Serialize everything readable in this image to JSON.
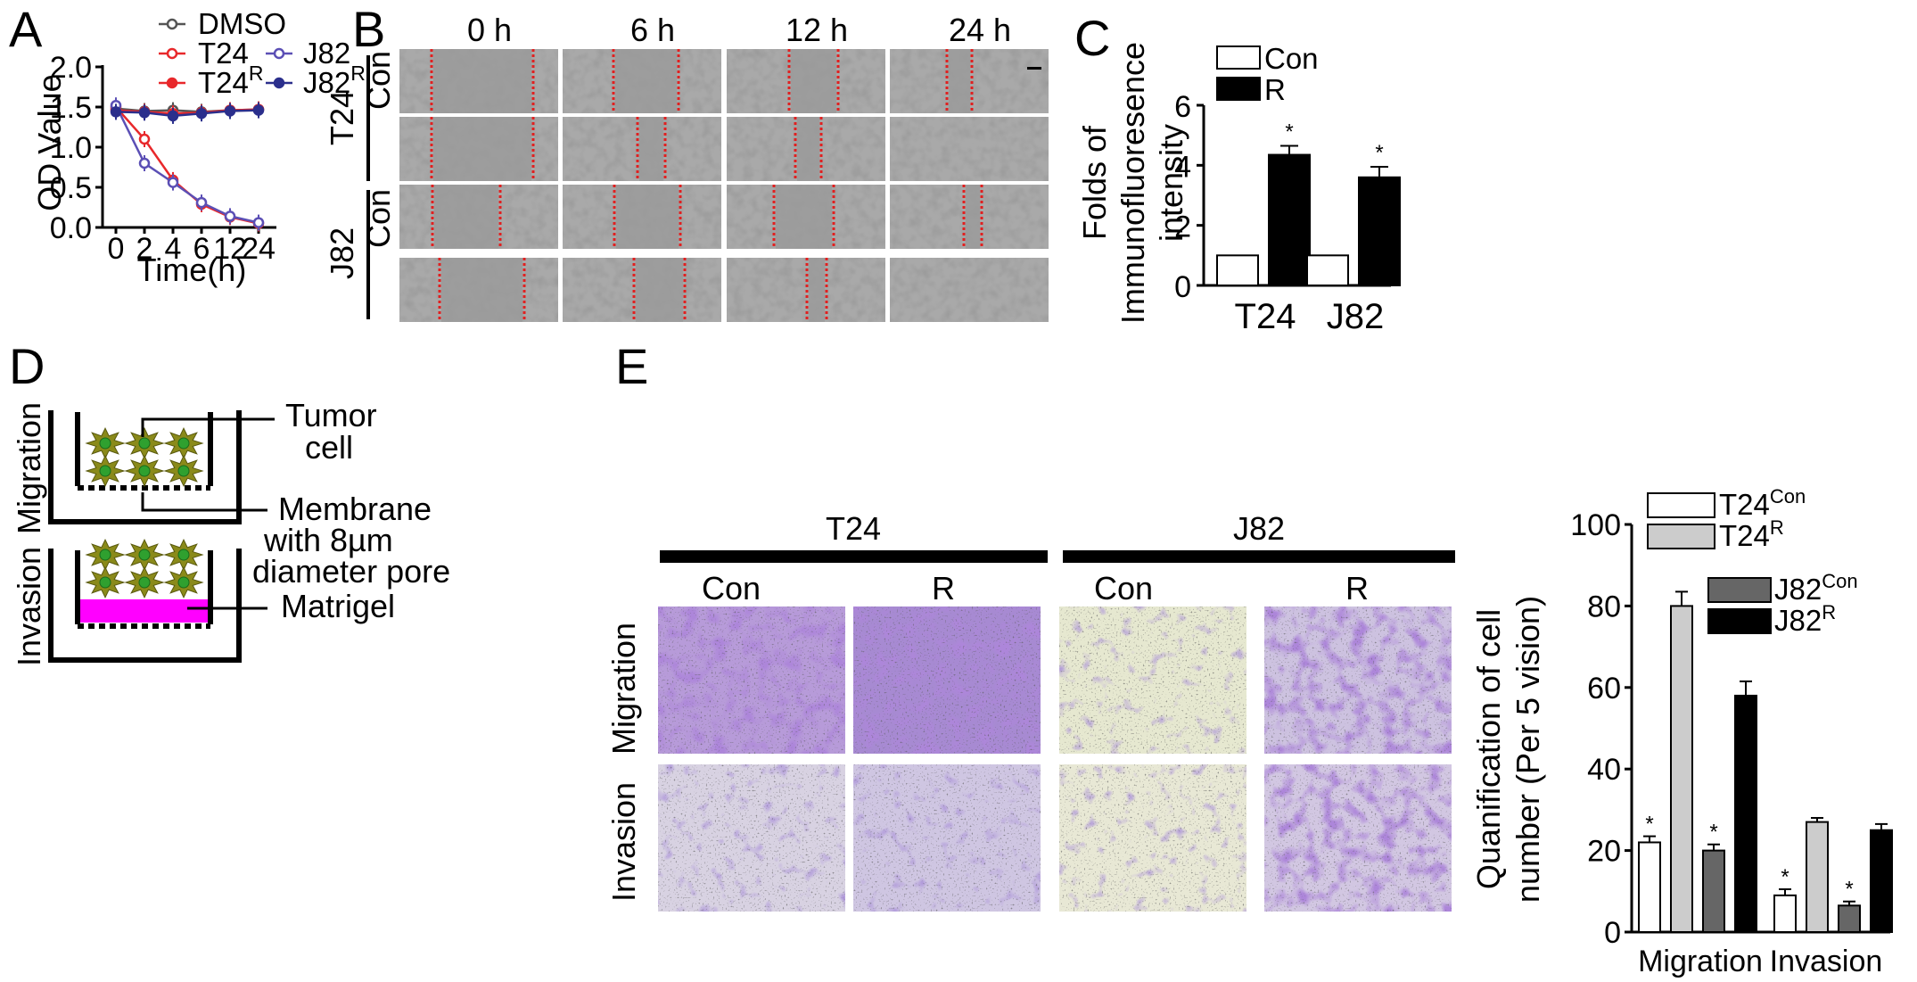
{
  "panels": {
    "A": "A",
    "B": "B",
    "C": "C",
    "D": "D",
    "E": "E"
  },
  "colors": {
    "dmso": "#555555",
    "t24": "#e8282b",
    "t24r": "#e8282b",
    "j82": "#5b4fb5",
    "j82r": "#2b2f8c",
    "barWhite": "#ffffff",
    "barLight": "#cccccc",
    "barDark": "#666666",
    "barBlack": "#000000",
    "matrigel": "#ff00ff",
    "cells": "#8a8a1a",
    "scratch": "#e02020",
    "crystal": "#6a3bb0"
  },
  "panelA": {
    "legend": {
      "dmso": "DMSO",
      "t24": "T24",
      "j82": "J82",
      "t24r_base": "T24",
      "t24r_sup": "R",
      "j82r_base": "J82",
      "j82r_sup": "R"
    }
  },
  "panelB": {
    "times": [
      "0 h",
      "6 h",
      "12 h",
      "24 h"
    ],
    "row_groups": [
      {
        "cell": "T24",
        "treatment": "Con"
      },
      {
        "cell": "J82",
        "treatment": "Con"
      }
    ]
  },
  "panelD": {
    "row_labels": [
      "Migration",
      "Invasion"
    ],
    "tumor": "Tumor",
    "cell": "cell",
    "membrane": "Membrane",
    "with8": "with 8µm",
    "pore": "diameter pore",
    "matrigel": "Matrigel"
  },
  "panelE": {
    "groups": [
      "T24",
      "J82"
    ],
    "cols": [
      "Con",
      "R",
      "Con",
      "R"
    ],
    "rows": [
      "Migration",
      "Invasion"
    ]
  },
  "chart_data": [
    {
      "id": "A",
      "type": "line",
      "xlabel": "Time(h)",
      "ylabel": "OD Value",
      "categories": [
        "0",
        "2",
        "4",
        "6",
        "12",
        "24"
      ],
      "ylim": [
        0,
        2.0
      ],
      "yticks": [
        "0.0",
        "0.5",
        "1.0",
        "1.5",
        "2.0"
      ],
      "series": [
        {
          "name": "DMSO",
          "values": [
            1.48,
            1.45,
            1.46,
            1.44,
            1.46,
            1.47
          ]
        },
        {
          "name": "T24",
          "values": [
            1.5,
            1.1,
            0.59,
            0.29,
            0.13,
            0.05
          ]
        },
        {
          "name": "T24R",
          "values": [
            1.46,
            1.44,
            1.42,
            1.43,
            1.46,
            1.47
          ]
        },
        {
          "name": "J82",
          "values": [
            1.52,
            0.8,
            0.56,
            0.31,
            0.14,
            0.06
          ]
        },
        {
          "name": "J82R",
          "values": [
            1.44,
            1.43,
            1.39,
            1.42,
            1.45,
            1.46
          ]
        }
      ]
    },
    {
      "id": "C",
      "type": "bar",
      "ylabel_line1": "Folds of",
      "ylabel_line2": "Immunofluoresence",
      "ylabel_line3": "intensity",
      "categories": [
        "T24",
        "J82"
      ],
      "ylim": [
        0,
        6
      ],
      "yticks": [
        "0",
        "2",
        "4",
        "6"
      ],
      "legend": [
        "Con",
        "R"
      ],
      "series": [
        {
          "name": "Con",
          "values": [
            1.0,
            1.0
          ],
          "errors": [
            0,
            0
          ]
        },
        {
          "name": "R",
          "values": [
            4.35,
            3.6
          ],
          "errors": [
            0.3,
            0.35
          ]
        }
      ],
      "significance": "*"
    },
    {
      "id": "E",
      "type": "bar",
      "ylabel_line1": "Quanification of cell",
      "ylabel_line2": "number (Per 5 vision)",
      "categories": [
        "Migration",
        "Invasion"
      ],
      "ylim": [
        0,
        100
      ],
      "yticks": [
        "0",
        "20",
        "40",
        "60",
        "80",
        "100"
      ],
      "legend": [
        {
          "base": "T24",
          "sup": "Con"
        },
        {
          "base": "T24",
          "sup": "R"
        },
        {
          "base": "J82",
          "sup": "Con"
        },
        {
          "base": "J82",
          "sup": "R"
        }
      ],
      "series": [
        {
          "name": "T24Con",
          "values": [
            22,
            9
          ],
          "errors": [
            1.5,
            1.5
          ]
        },
        {
          "name": "T24R",
          "values": [
            80,
            27
          ],
          "errors": [
            3.5,
            1
          ]
        },
        {
          "name": "J82Con",
          "values": [
            20,
            6.5
          ],
          "errors": [
            1.5,
            1
          ]
        },
        {
          "name": "J82R",
          "values": [
            58,
            25
          ],
          "errors": [
            3.5,
            1.5
          ]
        }
      ],
      "significance": "*"
    }
  ]
}
